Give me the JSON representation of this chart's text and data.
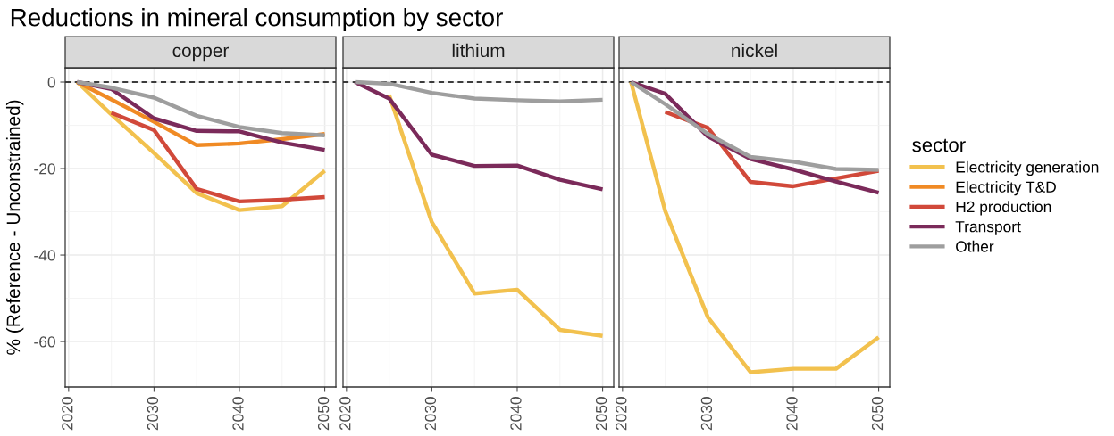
{
  "chart_data": [
    {
      "type": "line",
      "title": "Reductions in mineral consumption by sector",
      "subtitle": "copper",
      "legend_title": "sector",
      "legend": "right",
      "ylabel": "% (Reference - Unconstrained)",
      "x": [
        2021,
        2025,
        2030,
        2035,
        2040,
        2045,
        2050
      ],
      "xlim": [
        2019.6,
        2051.3
      ],
      "xticks": [
        2020,
        2030,
        2040,
        2050
      ],
      "ylim": [
        -70.5,
        3.3
      ],
      "yticks": [
        {
          "value": 0,
          "label": "0"
        },
        {
          "value": -20,
          "label": "-20"
        },
        {
          "value": -40,
          "label": "-40"
        },
        {
          "value": -60,
          "label": "-60"
        }
      ],
      "grid": true,
      "line_style": "solid",
      "ref_lines": [
        {
          "axis": "y",
          "value": 0,
          "label": null,
          "color": "#000000",
          "line_style": "dashed"
        }
      ],
      "series": [
        {
          "name": "Electricity generation",
          "color": "#f2c14e",
          "values": [
            0,
            -7.5,
            -16.4,
            -25.7,
            -29.6,
            -28.7,
            -20.5
          ]
        },
        {
          "name": "Electricity T&D",
          "color": "#f08a24",
          "values": [
            0,
            -4,
            -9.2,
            -14.6,
            -14.2,
            -13.2,
            -12
          ]
        },
        {
          "name": "H2 production",
          "color": "#d1493a",
          "values": [
            null,
            -7.1,
            -11.1,
            -24.7,
            -27.6,
            -27.2,
            -26.6
          ]
        },
        {
          "name": "Transport",
          "color": "#7b2a5a",
          "values": [
            0,
            -1.6,
            -8.4,
            -11.3,
            -11.4,
            -14,
            -15.7
          ]
        },
        {
          "name": "Other",
          "color": "#9e9e9e",
          "values": [
            0,
            -1.3,
            -3.6,
            -7.8,
            -10.4,
            -11.8,
            -12.3
          ]
        }
      ]
    },
    {
      "type": "line",
      "subtitle": "lithium",
      "x": [
        2021,
        2025,
        2030,
        2035,
        2040,
        2045,
        2050
      ],
      "xlim": [
        2019.6,
        2051.3
      ],
      "xticks": [
        2020,
        2030,
        2040,
        2050
      ],
      "ylim": [
        -70.5,
        3.3
      ],
      "yticks": [
        {
          "value": 0,
          "label": null
        },
        {
          "value": -20,
          "label": null
        },
        {
          "value": -40,
          "label": null
        },
        {
          "value": -60,
          "label": null
        }
      ],
      "tick_labels": "x",
      "grid": true,
      "line_style": "solid",
      "ref_lines": [
        {
          "axis": "y",
          "value": 0,
          "label": null,
          "color": "#000000",
          "line_style": "dashed"
        }
      ],
      "series": [
        {
          "name": "Electricity generation",
          "color": "#f2c14e",
          "values": [
            null,
            -3,
            -32.4,
            -48.9,
            -48,
            -57.3,
            -58.7
          ]
        },
        {
          "name": "Transport",
          "color": "#7b2a5a",
          "values": [
            0,
            -3.8,
            -16.8,
            -19.4,
            -19.3,
            -22.6,
            -24.8
          ]
        },
        {
          "name": "Other",
          "color": "#9e9e9e",
          "values": [
            0,
            -0.4,
            -2.5,
            -3.8,
            -4.2,
            -4.5,
            -4.1
          ]
        }
      ]
    },
    {
      "type": "line",
      "subtitle": "nickel",
      "x": [
        2021,
        2025,
        2030,
        2035,
        2040,
        2045,
        2050
      ],
      "xlim": [
        2019.6,
        2051.3
      ],
      "xticks": [
        2020,
        2030,
        2040,
        2050
      ],
      "ylim": [
        -70.5,
        3.3
      ],
      "yticks": [
        {
          "value": 0,
          "label": null
        },
        {
          "value": -20,
          "label": null
        },
        {
          "value": -40,
          "label": null
        },
        {
          "value": -60,
          "label": null
        }
      ],
      "tick_labels": "x",
      "grid": true,
      "line_style": "solid",
      "ref_lines": [
        {
          "axis": "y",
          "value": 0,
          "label": null,
          "color": "#000000",
          "line_style": "dashed"
        }
      ],
      "series": [
        {
          "name": "Electricity generation",
          "color": "#f2c14e",
          "values": [
            0,
            -29.8,
            -54.4,
            -67.1,
            -66.3,
            -66.3,
            -59
          ]
        },
        {
          "name": "H2 production",
          "color": "#d1493a",
          "values": [
            null,
            -6.9,
            -10.6,
            -23.1,
            -24.1,
            -22.3,
            -20.5
          ]
        },
        {
          "name": "Transport",
          "color": "#7b2a5a",
          "values": [
            0,
            -2.7,
            -12.6,
            -17.8,
            -20.2,
            -23,
            -25.6
          ]
        },
        {
          "name": "Other",
          "color": "#9e9e9e",
          "values": [
            0,
            -5.1,
            -12,
            -17.3,
            -18.4,
            -20.1,
            -20.3
          ]
        }
      ]
    }
  ]
}
